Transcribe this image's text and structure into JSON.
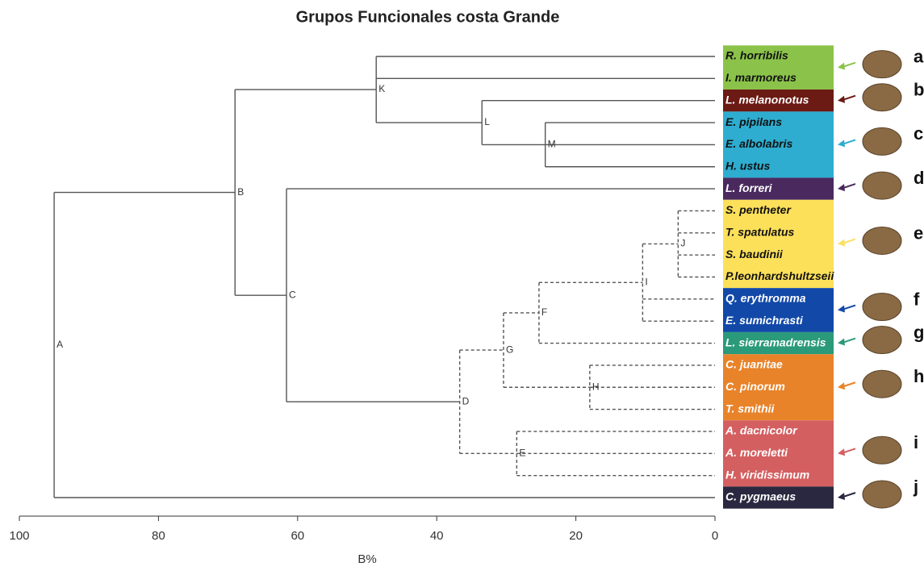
{
  "chart_data": {
    "type": "dendrogram",
    "title": "Grupos Funcionales costa Grande",
    "xlabel": "B%",
    "xlim": [
      100,
      0
    ],
    "xticks": [
      100,
      80,
      60,
      40,
      20,
      0
    ],
    "groups": [
      {
        "letter": "a",
        "color": "#8bc34a",
        "text_color": "#111111",
        "species": [
          "R. horribilis",
          "I. marmoreus"
        ]
      },
      {
        "letter": "b",
        "color": "#6b1a14",
        "text_color": "#ffffff",
        "species": [
          "L. melanonotus"
        ]
      },
      {
        "letter": "c",
        "color": "#2eadd0",
        "text_color": "#111111",
        "species": [
          "E. pipilans",
          "E. albolabris",
          "H. ustus"
        ]
      },
      {
        "letter": "d",
        "color": "#4a2a5e",
        "text_color": "#ffffff",
        "species": [
          "L. forreri"
        ]
      },
      {
        "letter": "e",
        "color": "#fde05a",
        "text_color": "#111111",
        "species": [
          "S. pentheter",
          "T. spatulatus",
          "S. baudinii",
          "P.leonhardshultzseii"
        ]
      },
      {
        "letter": "f",
        "color": "#1249a8",
        "text_color": "#ffffff",
        "species": [
          "Q. erythromma",
          "E. sumichrasti"
        ]
      },
      {
        "letter": "g",
        "color": "#2a9a7a",
        "text_color": "#ffffff",
        "species": [
          "L. sierramadrensis"
        ]
      },
      {
        "letter": "h",
        "color": "#e8832a",
        "text_color": "#ffffff",
        "species": [
          "C. juanitae",
          "C. pinorum",
          "T. smithii"
        ]
      },
      {
        "letter": "i",
        "color": "#d45f61",
        "text_color": "#ffffff",
        "species": [
          "A. dacnicolor",
          "A. moreletti",
          "H. viridissimum"
        ]
      },
      {
        "letter": "j",
        "color": "#2a2840",
        "text_color": "#ffffff",
        "species": [
          "C. pygmaeus"
        ]
      }
    ],
    "nodes": [
      {
        "name": "A",
        "height": 95,
        "dashed": false,
        "children": [
          "B",
          "C. pygmaeus"
        ]
      },
      {
        "name": "B",
        "height": 69,
        "dashed": false,
        "children": [
          "K",
          "C"
        ]
      },
      {
        "name": "K",
        "height": 48.7,
        "dashed": false,
        "children": [
          "R. horribilis",
          "I. marmoreus",
          "L"
        ]
      },
      {
        "name": "L",
        "height": 33.5,
        "dashed": false,
        "children": [
          "L. melanonotus",
          "M"
        ]
      },
      {
        "name": "M",
        "height": 24.4,
        "dashed": false,
        "children": [
          "E. pipilans",
          "E. albolabris",
          "H. ustus"
        ]
      },
      {
        "name": "C",
        "height": 61.6,
        "dashed": false,
        "children": [
          "L. forreri",
          "D"
        ]
      },
      {
        "name": "D",
        "height": 36.7,
        "dashed": true,
        "children": [
          "G",
          "E"
        ]
      },
      {
        "name": "G",
        "height": 30.4,
        "dashed": true,
        "children": [
          "F",
          "H"
        ]
      },
      {
        "name": "F",
        "height": 25.3,
        "dashed": true,
        "children": [
          "I",
          "L. sierramadrensis"
        ]
      },
      {
        "name": "I",
        "height": 10.4,
        "dashed": true,
        "children": [
          "J",
          "Q. erythromma",
          "E. sumichrasti"
        ]
      },
      {
        "name": "J",
        "height": 5.3,
        "dashed": true,
        "children": [
          "S. pentheter",
          "T. spatulatus",
          "S. baudinii",
          "P.leonhardshultzseii"
        ]
      },
      {
        "name": "H",
        "height": 18,
        "dashed": true,
        "children": [
          "C. juanitae",
          "C. pinorum",
          "T. smithii"
        ]
      },
      {
        "name": "E",
        "height": 28.5,
        "dashed": true,
        "children": [
          "A. dacnicolor",
          "A. moreletti",
          "H. viridissimum"
        ]
      }
    ]
  }
}
